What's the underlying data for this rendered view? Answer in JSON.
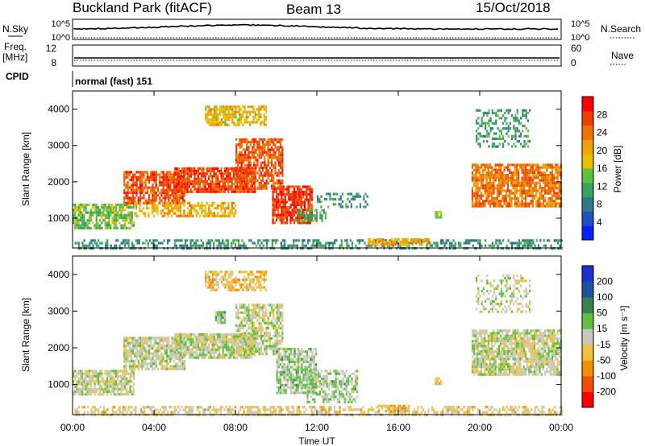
{
  "header": {
    "station": "Buckland Park (fitACF)",
    "beam": "Beam 13",
    "date": "15/Oct/2018"
  },
  "top_panel": {
    "nsky_label": "N.Sky",
    "nsky_ticks": [
      "10^5",
      "10^0"
    ],
    "nsearch_label": "N.Search",
    "nsearch_ticks": [
      "10^5",
      "10^0"
    ],
    "freq_label": "Freq.",
    "freq_unit": "[MHz]",
    "freq_ticks": [
      "12",
      "8"
    ],
    "nave_label": "Nave",
    "nave_ticks": [
      "60",
      "0"
    ],
    "cpid_label": "CPID",
    "cpid_value": "normal (fast) 151"
  },
  "chart_data": [
    {
      "type": "heatmap",
      "name": "power",
      "xlabel": "",
      "ylabel": "Slant Range [km]",
      "xlim": [
        0,
        24
      ],
      "ylim": [
        180,
        4500
      ],
      "y_ticks": [
        "1000",
        "2000",
        "3000",
        "4000"
      ],
      "colorbar_label": "Power [dB]",
      "colorbar_ticks": [
        "4",
        "8",
        "12",
        "16",
        "20",
        "24",
        "28"
      ],
      "colorbar_range": [
        0,
        32
      ],
      "colors": [
        "#0020ff",
        "#2050c0",
        "#2f7a8a",
        "#3aa060",
        "#60c040",
        "#e8c000",
        "#f0a000",
        "#f07000",
        "#f04000",
        "#ff0000"
      ],
      "regions": [
        {
          "x": [
            0.1,
            11.0
          ],
          "y": [
            180,
            420
          ],
          "v": 10,
          "density": 0.5
        },
        {
          "x": [
            11.0,
            24.0
          ],
          "y": [
            180,
            420
          ],
          "v": 10,
          "density": 0.45
        },
        {
          "x": [
            0.0,
            3.0
          ],
          "y": [
            750,
            1400
          ],
          "v": 14,
          "density": 0.75
        },
        {
          "x": [
            2.5,
            5.5
          ],
          "y": [
            1400,
            2300
          ],
          "v": 26,
          "density": 0.8
        },
        {
          "x": [
            5.0,
            9.0
          ],
          "y": [
            1700,
            2400
          ],
          "v": 27,
          "density": 0.85
        },
        {
          "x": [
            3.0,
            8.0
          ],
          "y": [
            1050,
            1450
          ],
          "v": 20,
          "density": 0.6
        },
        {
          "x": [
            8.0,
            10.3
          ],
          "y": [
            1800,
            3200
          ],
          "v": 26,
          "density": 0.7
        },
        {
          "x": [
            6.5,
            9.5
          ],
          "y": [
            3600,
            4100
          ],
          "v": 19,
          "density": 0.7
        },
        {
          "x": [
            9.8,
            11.8
          ],
          "y": [
            850,
            1900
          ],
          "v": 28,
          "density": 0.8
        },
        {
          "x": [
            11.0,
            12.5
          ],
          "y": [
            950,
            1250
          ],
          "v": 13,
          "density": 0.5
        },
        {
          "x": [
            12.0,
            14.5
          ],
          "y": [
            1300,
            1700
          ],
          "v": 11,
          "density": 0.35
        },
        {
          "x": [
            14.5,
            17.5
          ],
          "y": [
            250,
            450
          ],
          "v": 20,
          "density": 0.7
        },
        {
          "x": [
            19.6,
            24.0
          ],
          "y": [
            1300,
            2500
          ],
          "v": 24,
          "density": 0.8
        },
        {
          "x": [
            19.8,
            22.5
          ],
          "y": [
            3000,
            4000
          ],
          "v": 11,
          "density": 0.4
        },
        {
          "x": [
            17.8,
            18.1
          ],
          "y": [
            1000,
            1200
          ],
          "v": 14,
          "density": 0.8
        }
      ]
    },
    {
      "type": "heatmap",
      "name": "velocity",
      "xlabel": "Time UT",
      "ylabel": "Slant Range [km]",
      "xlim": [
        0,
        24
      ],
      "ylim": [
        180,
        4500
      ],
      "x_ticks": [
        "00:00",
        "04:00",
        "08:00",
        "12:00",
        "16:00",
        "20:00",
        "00:00"
      ],
      "y_ticks": [
        "1000",
        "2000",
        "3000",
        "4000"
      ],
      "colorbar_label": "Velocity [m s⁻¹]",
      "colorbar_ticks": [
        "200",
        "100",
        "50",
        "15",
        "-15",
        "-50",
        "-100",
        "-200"
      ],
      "colorbar_range": [
        -250,
        250
      ],
      "colors": [
        "#ff0000",
        "#f05000",
        "#f09000",
        "#f0c040",
        "#c8c8c0",
        "#60c040",
        "#3a8050",
        "#2050a0",
        "#2030d0"
      ],
      "regions": [
        {
          "x": [
            0.1,
            11.0
          ],
          "y": [
            180,
            420
          ],
          "v": -30,
          "density": 0.55
        },
        {
          "x": [
            11.0,
            24.0
          ],
          "y": [
            180,
            420
          ],
          "v": -40,
          "density": 0.5
        },
        {
          "x": [
            0.0,
            3.0
          ],
          "y": [
            750,
            1400
          ],
          "v": 0,
          "density": 0.8
        },
        {
          "x": [
            2.5,
            5.5
          ],
          "y": [
            1400,
            2300
          ],
          "v": 0,
          "density": 0.8
        },
        {
          "x": [
            5.0,
            9.0
          ],
          "y": [
            1700,
            2400
          ],
          "v": 0,
          "density": 0.85
        },
        {
          "x": [
            8.0,
            10.3
          ],
          "y": [
            1800,
            3200
          ],
          "v": 0,
          "density": 0.7
        },
        {
          "x": [
            7.0,
            7.5
          ],
          "y": [
            2700,
            3000
          ],
          "v": 40,
          "density": 0.9
        },
        {
          "x": [
            6.5,
            9.5
          ],
          "y": [
            3600,
            4100
          ],
          "v": -60,
          "density": 0.6
        },
        {
          "x": [
            10.0,
            12.0
          ],
          "y": [
            800,
            2000
          ],
          "v": 30,
          "density": 0.75
        },
        {
          "x": [
            11.5,
            14.0
          ],
          "y": [
            500,
            1400
          ],
          "v": 25,
          "density": 0.55
        },
        {
          "x": [
            15.0,
            16.5
          ],
          "y": [
            250,
            450
          ],
          "v": -60,
          "density": 0.7
        },
        {
          "x": [
            19.6,
            24.0
          ],
          "y": [
            1300,
            2500
          ],
          "v": 0,
          "density": 0.8
        },
        {
          "x": [
            19.8,
            22.5
          ],
          "y": [
            3000,
            4000
          ],
          "v": 0,
          "density": 0.4
        },
        {
          "x": [
            17.8,
            18.1
          ],
          "y": [
            1000,
            1200
          ],
          "v": -60,
          "density": 0.8
        }
      ]
    }
  ]
}
